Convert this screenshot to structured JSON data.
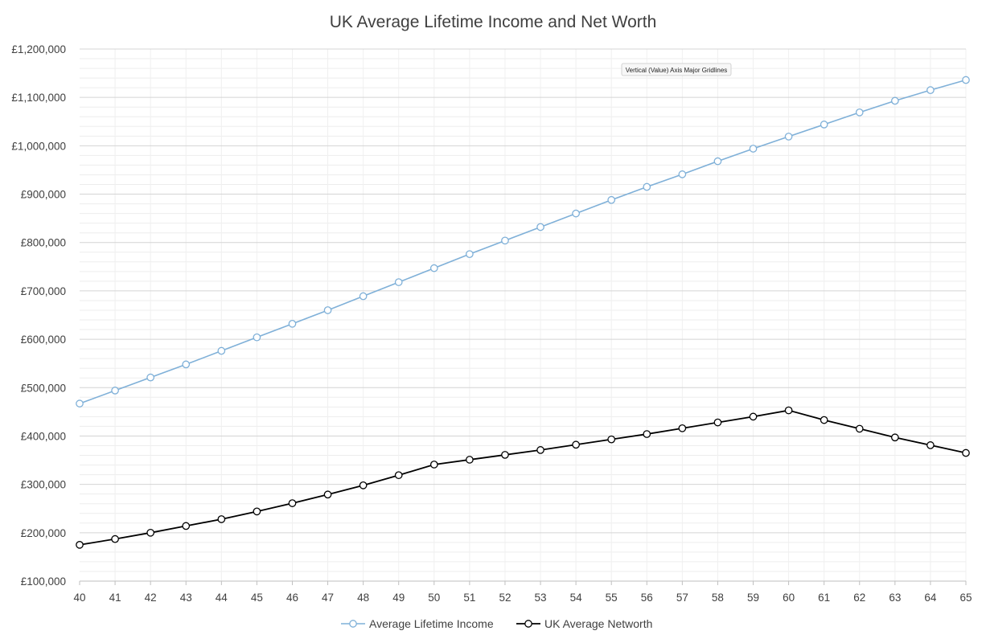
{
  "chart_data": {
    "type": "line",
    "title": "UK Average Lifetime Income and Net Worth",
    "xlabel": "",
    "ylabel": "",
    "x": [
      40,
      41,
      42,
      43,
      44,
      45,
      46,
      47,
      48,
      49,
      50,
      51,
      52,
      53,
      54,
      55,
      56,
      57,
      58,
      59,
      60,
      61,
      62,
      63,
      64,
      65
    ],
    "x_tick_labels": [
      "40",
      "41",
      "42",
      "43",
      "44",
      "45",
      "46",
      "47",
      "48",
      "49",
      "50",
      "51",
      "52",
      "53",
      "54",
      "55",
      "56",
      "57",
      "58",
      "59",
      "60",
      "61",
      "62",
      "63",
      "64",
      "65"
    ],
    "ylim": [
      100000,
      1200000
    ],
    "y_major_step": 100000,
    "y_tick_labels": [
      "£100,000",
      "£200,000",
      "£300,000",
      "£400,000",
      "£500,000",
      "£600,000",
      "£700,000",
      "£800,000",
      "£900,000",
      "£1,000,000",
      "£1,100,000",
      "£1,200,000"
    ],
    "grid": true,
    "minor_grid": true,
    "legend_position": "bottom",
    "series": [
      {
        "name": "Average Lifetime Income",
        "color": "#7fb0d8",
        "marker": "hollow-circle",
        "values": [
          467000,
          494000,
          521000,
          548000,
          576000,
          604000,
          632000,
          660000,
          689000,
          718000,
          747000,
          776000,
          804000,
          832000,
          860000,
          888000,
          915000,
          941000,
          968000,
          994000,
          1019000,
          1044000,
          1069000,
          1093000,
          1115000,
          1136000
        ]
      },
      {
        "name": "UK Average Networth",
        "color": "#000000",
        "marker": "hollow-circle",
        "values": [
          175000,
          187000,
          200000,
          214000,
          228000,
          244000,
          261000,
          279000,
          298000,
          319000,
          341000,
          351000,
          361000,
          371000,
          382000,
          393000,
          404000,
          416000,
          428000,
          440000,
          453000,
          433000,
          415000,
          397000,
          381000,
          365000
        ]
      }
    ],
    "annotation": "Vertical (Value) Axis Major Gridlines"
  }
}
